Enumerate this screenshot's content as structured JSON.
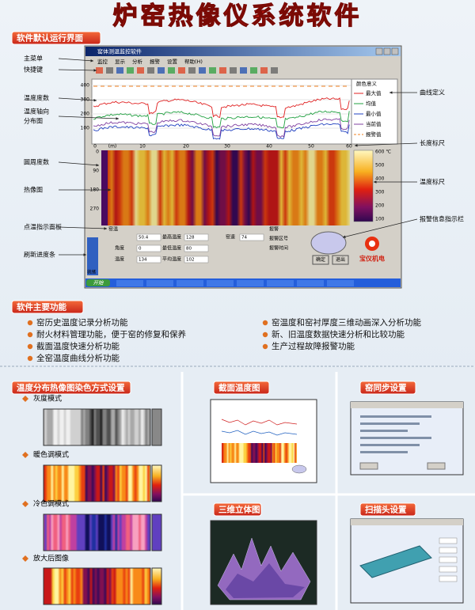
{
  "header": {
    "title": "炉窑热像仪系统软件"
  },
  "section1": {
    "tag": "软件默认运行界面",
    "left_callouts": [
      "主菜单",
      "快捷键",
      "温度度数",
      [
        "温度轴向",
        "分布图"
      ],
      "圆周度数",
      "热像图",
      "点温指示面板",
      "刷新进度条"
    ],
    "right_callouts": [
      "曲线定义",
      "长度标尺",
      "温度标尺",
      "报警信息指示栏"
    ],
    "window": {
      "title": "窑体测温监控软件",
      "menu": [
        "监控",
        "显示",
        "分析",
        "报警",
        "设置",
        "帮助(H)"
      ],
      "legend_title": "颜色意义",
      "legend": [
        "最大值",
        "均值",
        "最小值",
        "当前值",
        "报警值"
      ],
      "y_labels": [
        "400",
        "300",
        "200",
        "100"
      ],
      "x_labels": [
        "0",
        "(m)",
        "10",
        "20",
        "30",
        "40",
        "50",
        "60"
      ],
      "circum_labels": [
        "0",
        "90",
        "180",
        "270"
      ],
      "scale_labels": [
        "600 ℃",
        "500",
        "400",
        "300",
        "200",
        "100"
      ],
      "panel": [
        [
          "窑温",
          "50.4"
        ],
        [
          "最高温度",
          "128"
        ],
        [
          "窑速",
          "74"
        ],
        [
          "角度",
          "0"
        ],
        [
          "最低温度",
          "80"
        ],
        [
          "温度",
          "134"
        ],
        [
          "平均温度",
          "102"
        ]
      ],
      "alarm": [
        "报警",
        "报警区号",
        "报警时间"
      ],
      "buttons": [
        "确定",
        "退出"
      ],
      "brand": "宝仪机电",
      "status": "就绪",
      "start": "开始"
    }
  },
  "section2": {
    "tag": "软件主要功能",
    "left": [
      "窑历史温度记录分析功能",
      "耐火材料管理功能，便于窑的修复和保养",
      "截面温度快速分析功能",
      "全窑温度曲线分析功能"
    ],
    "right": [
      "窑温度和窑衬厚度三维动画深入分析功能",
      "新、旧温度数据快速分析和比较功能",
      "生产过程故障报警功能"
    ]
  },
  "section3": {
    "coloring": {
      "tag": "温度分布热像图染色方式设置",
      "modes": [
        "灰度模式",
        "暖色调模式",
        "冷色调模式",
        "放大后图像"
      ]
    },
    "cross_section": {
      "tag": "截面温度图"
    },
    "sync": {
      "tag": "窑同步设置"
    },
    "three_d": {
      "tag": "三维立体图"
    },
    "scan_head": {
      "tag": "扫描头设置"
    }
  }
}
